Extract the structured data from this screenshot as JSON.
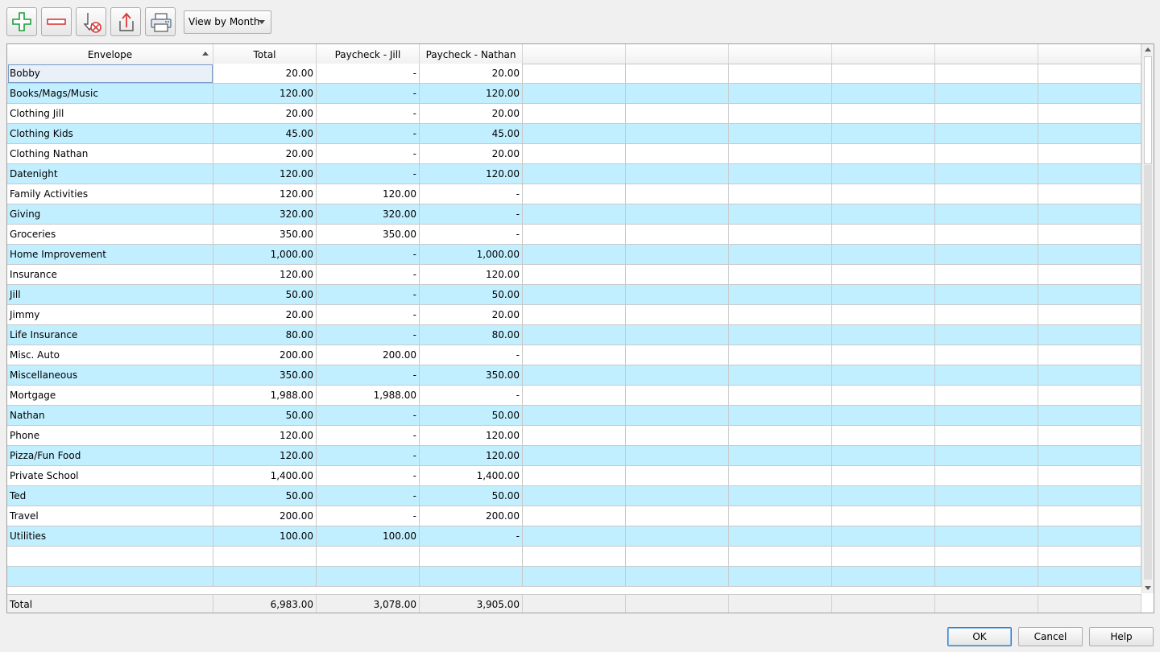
{
  "toolbar": {
    "buttons": [
      {
        "name": "add-icon",
        "color": "#1a9e3a"
      },
      {
        "name": "remove-icon",
        "color": "#d93a3a"
      },
      {
        "name": "import-icon",
        "color": "#d93a3a"
      },
      {
        "name": "export-icon",
        "color": "#d93a3a"
      },
      {
        "name": "print-icon",
        "color": "#4a6a8a"
      }
    ],
    "view_select": "View by Month"
  },
  "grid": {
    "columns": [
      "Envelope",
      "Total",
      "Paycheck - Jill",
      "Paycheck - Nathan",
      "",
      "",
      "",
      "",
      "",
      ""
    ],
    "sort_column": "Envelope",
    "sort_direction": "ascending",
    "row_alt_color": "#c2efff",
    "rows": [
      {
        "name": "Bobby",
        "total": "20.00",
        "jill": "-",
        "nathan": "20.00"
      },
      {
        "name": "Books/Mags/Music",
        "total": "120.00",
        "jill": "-",
        "nathan": "120.00"
      },
      {
        "name": "Clothing Jill",
        "total": "20.00",
        "jill": "-",
        "nathan": "20.00"
      },
      {
        "name": "Clothing Kids",
        "total": "45.00",
        "jill": "-",
        "nathan": "45.00"
      },
      {
        "name": "Clothing Nathan",
        "total": "20.00",
        "jill": "-",
        "nathan": "20.00"
      },
      {
        "name": "Datenight",
        "total": "120.00",
        "jill": "-",
        "nathan": "120.00"
      },
      {
        "name": "Family Activities",
        "total": "120.00",
        "jill": "120.00",
        "nathan": "-"
      },
      {
        "name": "Giving",
        "total": "320.00",
        "jill": "320.00",
        "nathan": "-"
      },
      {
        "name": "Groceries",
        "total": "350.00",
        "jill": "350.00",
        "nathan": "-"
      },
      {
        "name": "Home Improvement",
        "total": "1,000.00",
        "jill": "-",
        "nathan": "1,000.00"
      },
      {
        "name": "Insurance",
        "total": "120.00",
        "jill": "-",
        "nathan": "120.00"
      },
      {
        "name": "Jill",
        "total": "50.00",
        "jill": "-",
        "nathan": "50.00"
      },
      {
        "name": "Jimmy",
        "total": "20.00",
        "jill": "-",
        "nathan": "20.00"
      },
      {
        "name": "Life Insurance",
        "total": "80.00",
        "jill": "-",
        "nathan": "80.00"
      },
      {
        "name": "Misc. Auto",
        "total": "200.00",
        "jill": "200.00",
        "nathan": "-"
      },
      {
        "name": "Miscellaneous",
        "total": "350.00",
        "jill": "-",
        "nathan": "350.00"
      },
      {
        "name": "Mortgage",
        "total": "1,988.00",
        "jill": "1,988.00",
        "nathan": "-"
      },
      {
        "name": "Nathan",
        "total": "50.00",
        "jill": "-",
        "nathan": "50.00"
      },
      {
        "name": "Phone",
        "total": "120.00",
        "jill": "-",
        "nathan": "120.00"
      },
      {
        "name": "Pizza/Fun Food",
        "total": "120.00",
        "jill": "-",
        "nathan": "120.00"
      },
      {
        "name": "Private School",
        "total": "1,400.00",
        "jill": "-",
        "nathan": "1,400.00"
      },
      {
        "name": "Ted",
        "total": "50.00",
        "jill": "-",
        "nathan": "50.00"
      },
      {
        "name": "Travel",
        "total": "200.00",
        "jill": "-",
        "nathan": "200.00"
      },
      {
        "name": "Utilities",
        "total": "100.00",
        "jill": "100.00",
        "nathan": "-"
      },
      {
        "name": "",
        "total": "",
        "jill": "",
        "nathan": ""
      },
      {
        "name": "",
        "total": "",
        "jill": "",
        "nathan": ""
      }
    ],
    "totals": {
      "name": "Total",
      "total": "6,983.00",
      "jill": "3,078.00",
      "nathan": "3,905.00"
    }
  },
  "dialog": {
    "ok_label": "OK",
    "cancel_label": "Cancel",
    "help_label": "Help"
  }
}
